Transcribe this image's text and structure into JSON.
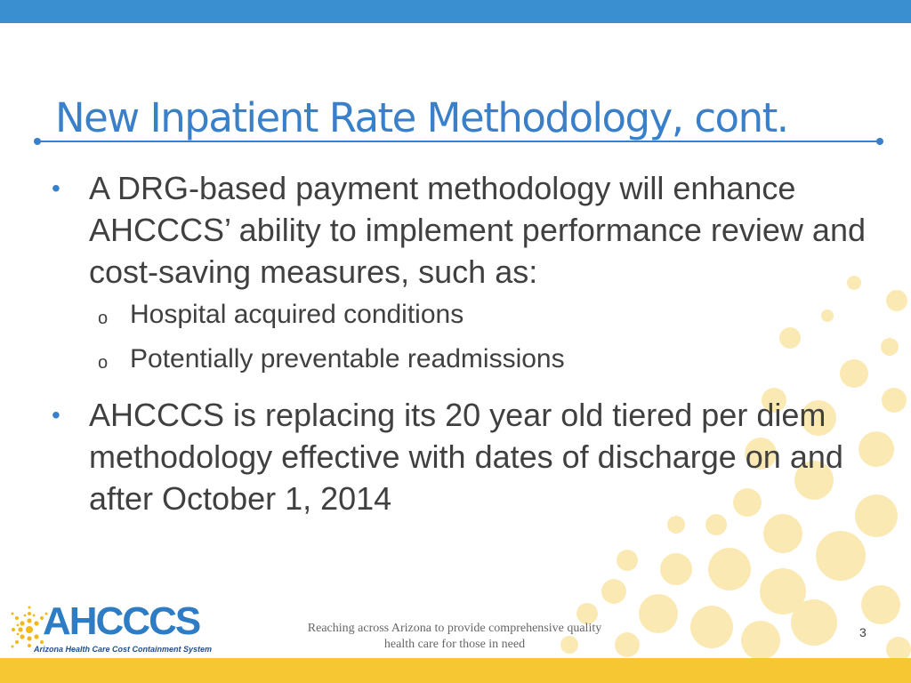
{
  "slide": {
    "title": "New Inpatient Rate Methodology, cont.",
    "bullets": [
      {
        "text": "A DRG-based payment methodology will enhance AHCCCS’ ability to implement performance review and cost-saving measures, such as:",
        "sub_items": [
          "Hospital acquired conditions",
          "Potentially preventable readmissions"
        ]
      },
      {
        "text": "AHCCCS is replacing its 20 year old tiered per diem methodology effective with dates of discharge on and after October 1, 2014"
      }
    ],
    "bullet_marker": "•",
    "sub_marker": "o"
  },
  "footer": {
    "tagline": "Reaching across Arizona to provide comprehensive quality health care for those in need",
    "page_number": "3"
  },
  "logo": {
    "name": "AHCCCS",
    "tagline": "Arizona Health Care Cost Containment System"
  },
  "colors": {
    "accent_blue": "#3a7fc9",
    "top_bar": "#3a8fd0",
    "bottom_bar": "#f7c733",
    "sun_dots": "#fbe6a8"
  }
}
